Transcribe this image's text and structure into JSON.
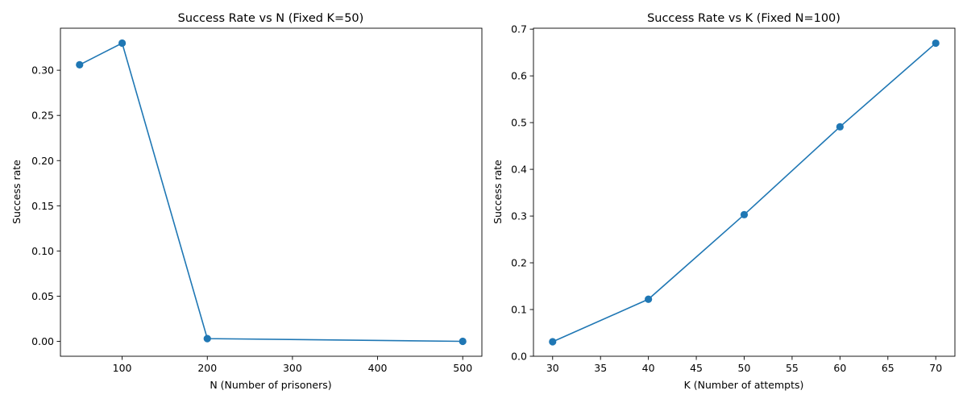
{
  "chart_data": [
    {
      "type": "line",
      "title": "Success Rate vs N (Fixed K=50)",
      "xlabel": "N (Number of prisoners)",
      "ylabel": "Success rate",
      "x": [
        50,
        100,
        200,
        500
      ],
      "series": [
        {
          "values": [
            0.306,
            0.33,
            0.003,
            0.0
          ]
        }
      ],
      "xlim": [
        27.5,
        522.5
      ],
      "ylim": [
        -0.0165,
        0.3465
      ],
      "xticks": [
        100,
        200,
        300,
        400,
        500
      ],
      "xtick_labels": [
        "100",
        "200",
        "300",
        "400",
        "500"
      ],
      "yticks": [
        0.0,
        0.05,
        0.1,
        0.15,
        0.2,
        0.25,
        0.3
      ],
      "ytick_labels": [
        "0.00",
        "0.05",
        "0.10",
        "0.15",
        "0.20",
        "0.25",
        "0.30"
      ],
      "marker": "circle",
      "color": "#1f77b4",
      "grid": false
    },
    {
      "type": "line",
      "title": "Success Rate vs K (Fixed N=100)",
      "xlabel": "K (Number of attempts)",
      "ylabel": "Success rate",
      "x": [
        30,
        40,
        50,
        60,
        70
      ],
      "series": [
        {
          "values": [
            0.031,
            0.122,
            0.303,
            0.491,
            0.67
          ]
        }
      ],
      "xlim": [
        28.0,
        72.0
      ],
      "ylim": [
        0.0,
        0.702
      ],
      "xticks": [
        30,
        35,
        40,
        45,
        50,
        55,
        60,
        65,
        70
      ],
      "xtick_labels": [
        "30",
        "35",
        "40",
        "45",
        "50",
        "55",
        "60",
        "65",
        "70"
      ],
      "yticks": [
        0.0,
        0.1,
        0.2,
        0.3,
        0.4,
        0.5,
        0.6,
        0.7
      ],
      "ytick_labels": [
        "0.0",
        "0.1",
        "0.2",
        "0.3",
        "0.4",
        "0.5",
        "0.6",
        "0.7"
      ],
      "marker": "circle",
      "color": "#1f77b4",
      "grid": false
    }
  ]
}
